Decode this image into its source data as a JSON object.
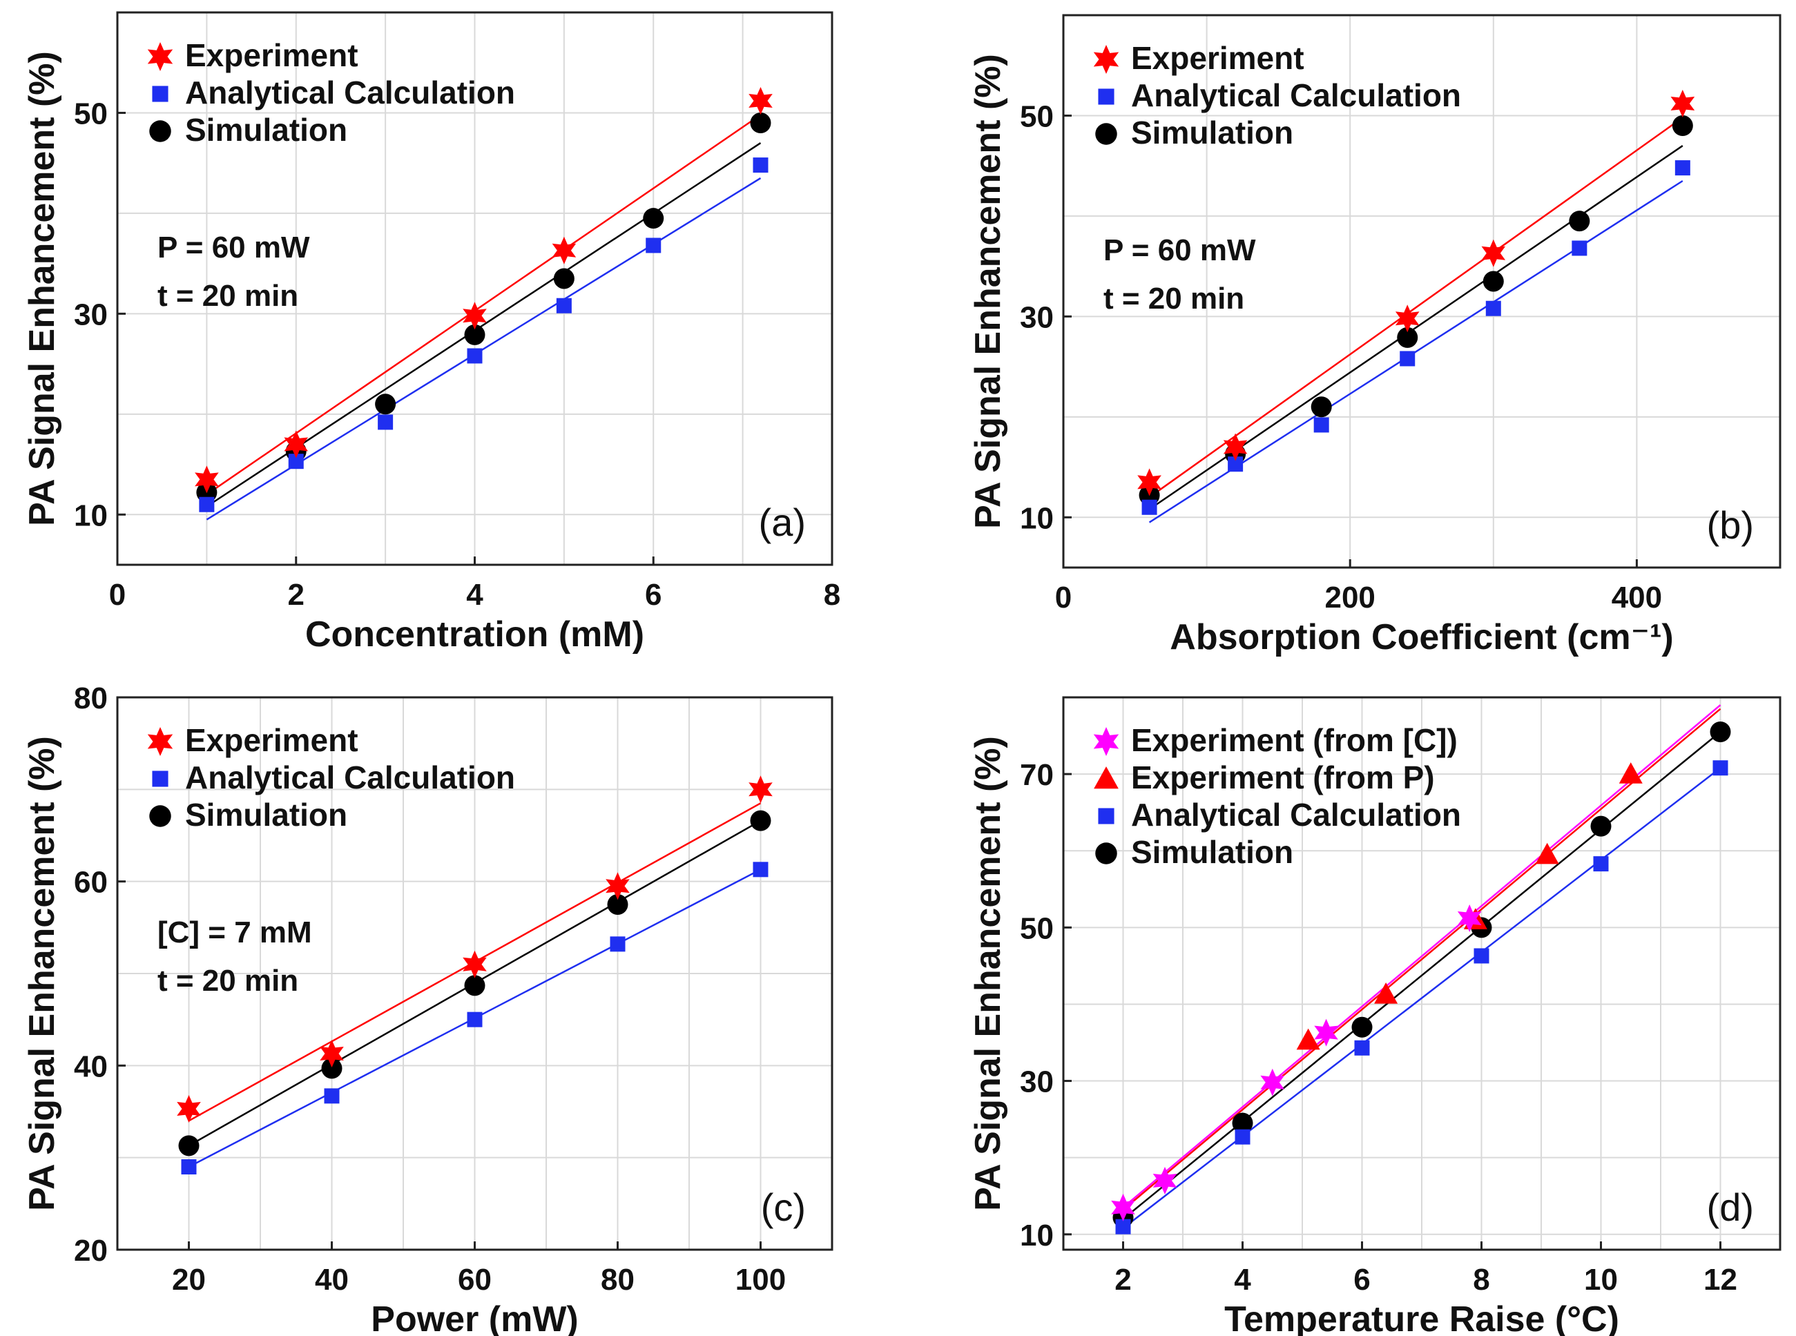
{
  "chart_data": [
    {
      "type": "scatter",
      "panel_label": "(a)",
      "xlabel": "Concentration (mM)",
      "ylabel": "PA Signal Enhancement (%)",
      "xlim": [
        0,
        8
      ],
      "ylim": [
        5,
        60
      ],
      "xticks": [
        0,
        2,
        4,
        6,
        8
      ],
      "yticks": [
        10,
        30,
        50
      ],
      "grid": true,
      "legend_position": "top-left",
      "annotations": [
        "P = 60 mW",
        "t = 20 min"
      ],
      "series": [
        {
          "name": "Experiment",
          "marker": "star",
          "color": "#ff0000",
          "x": [
            1,
            2,
            4,
            5,
            7.2
          ],
          "y": [
            13.5,
            17,
            29.8,
            36.3,
            51.2
          ],
          "fit": {
            "x": [
              1,
              7.2
            ],
            "y": [
              12,
              49.8
            ]
          }
        },
        {
          "name": "Analytical Calculation",
          "marker": "square",
          "color": "#1f2ff0",
          "x": [
            1,
            2,
            3,
            4,
            5,
            6,
            7.2
          ],
          "y": [
            11,
            15.3,
            19.2,
            25.8,
            30.8,
            36.8,
            44.8
          ],
          "fit": {
            "x": [
              1,
              7.2
            ],
            "y": [
              9.5,
              43.5
            ]
          }
        },
        {
          "name": "Simulation",
          "marker": "circle",
          "color": "#000000",
          "x": [
            1,
            2,
            3,
            4,
            5,
            6,
            7.2
          ],
          "y": [
            12.2,
            16.3,
            21,
            27.9,
            33.5,
            39.5,
            49
          ],
          "fit": {
            "x": [
              1,
              7.2
            ],
            "y": [
              10.8,
              47
            ]
          }
        }
      ]
    },
    {
      "type": "scatter",
      "panel_label": "(b)",
      "xlabel": "Absorption Coefficient (cm⁻¹)",
      "ylabel": "PA Signal Enhancement (%)",
      "xlim": [
        0,
        500
      ],
      "ylim": [
        5,
        60
      ],
      "xticks": [
        0,
        200,
        400
      ],
      "yticks": [
        10,
        30,
        50
      ],
      "grid": true,
      "legend_position": "top-left",
      "annotations": [
        "P = 60 mW",
        "t = 20 min"
      ],
      "series": [
        {
          "name": "Experiment",
          "marker": "star",
          "color": "#ff0000",
          "x": [
            60,
            120,
            240,
            300,
            432
          ],
          "y": [
            13.5,
            17,
            29.8,
            36.3,
            51.2
          ],
          "fit": {
            "x": [
              60,
              432
            ],
            "y": [
              12,
              49.8
            ]
          }
        },
        {
          "name": "Analytical Calculation",
          "marker": "square",
          "color": "#1f2ff0",
          "x": [
            60,
            120,
            180,
            240,
            300,
            360,
            432
          ],
          "y": [
            11,
            15.3,
            19.2,
            25.8,
            30.8,
            36.8,
            44.8
          ],
          "fit": {
            "x": [
              60,
              432
            ],
            "y": [
              9.5,
              43.5
            ]
          }
        },
        {
          "name": "Simulation",
          "marker": "circle",
          "color": "#000000",
          "x": [
            60,
            120,
            180,
            240,
            300,
            360,
            432
          ],
          "y": [
            12.2,
            16.3,
            21,
            27.9,
            33.5,
            39.5,
            49
          ],
          "fit": {
            "x": [
              60,
              432
            ],
            "y": [
              10.8,
              47
            ]
          }
        }
      ]
    },
    {
      "type": "scatter",
      "panel_label": "(c)",
      "xlabel": "Power (mW)",
      "ylabel": "PA Signal Enhancement (%)",
      "xlim": [
        10,
        110
      ],
      "ylim": [
        20,
        80
      ],
      "xticks": [
        20,
        40,
        60,
        80,
        100
      ],
      "yticks": [
        20,
        40,
        60,
        80
      ],
      "grid": true,
      "legend_position": "top-left",
      "annotations": [
        "[C] = 7 mM",
        "t = 20 min"
      ],
      "series": [
        {
          "name": "Experiment",
          "marker": "star",
          "color": "#ff0000",
          "x": [
            20,
            40,
            60,
            80,
            100
          ],
          "y": [
            35.3,
            41.3,
            51,
            59.5,
            70
          ],
          "fit": {
            "x": [
              20,
              100
            ],
            "y": [
              34,
              68.5
            ]
          }
        },
        {
          "name": "Analytical Calculation",
          "marker": "square",
          "color": "#1f2ff0",
          "x": [
            20,
            40,
            60,
            80,
            100
          ],
          "y": [
            29,
            36.7,
            45,
            53.2,
            61.3
          ],
          "fit": {
            "x": [
              20,
              100
            ],
            "y": [
              29,
              61.3
            ]
          }
        },
        {
          "name": "Simulation",
          "marker": "circle",
          "color": "#000000",
          "x": [
            20,
            40,
            60,
            80,
            100
          ],
          "y": [
            31.3,
            39.7,
            48.7,
            57.5,
            66.6
          ],
          "fit": {
            "x": [
              20,
              100
            ],
            "y": [
              31.3,
              66.6
            ]
          }
        }
      ]
    },
    {
      "type": "scatter",
      "panel_label": "(d)",
      "xlabel": "Temperature Raise (°C)",
      "ylabel": "PA Signal Enhancement (%)",
      "xlim": [
        1,
        13
      ],
      "ylim": [
        8,
        80
      ],
      "xticks": [
        2,
        4,
        6,
        8,
        10,
        12
      ],
      "yticks": [
        10,
        30,
        50,
        70
      ],
      "grid": true,
      "legend_position": "top-left",
      "annotations": [],
      "series": [
        {
          "name": "Experiment (from [C])",
          "marker": "star",
          "color": "#ff00ff",
          "x": [
            2,
            2.7,
            4.5,
            5.4,
            7.8
          ],
          "y": [
            13.5,
            17,
            29.8,
            36.3,
            51.2
          ],
          "fit": {
            "x": [
              2,
              12
            ],
            "y": [
              13.5,
              79
            ]
          }
        },
        {
          "name": "Experiment (from P)",
          "marker": "triangle",
          "color": "#ff0000",
          "x": [
            5.1,
            6.4,
            7.9,
            9.1,
            10.5
          ],
          "y": [
            35.3,
            41.3,
            51,
            59.5,
            70
          ],
          "fit": {
            "x": [
              2,
              12
            ],
            "y": [
              13.2,
              78.5
            ]
          }
        },
        {
          "name": "Analytical Calculation",
          "marker": "square",
          "color": "#1f2ff0",
          "x": [
            2,
            4,
            6,
            8,
            10,
            12
          ],
          "y": [
            11,
            22.7,
            34.3,
            46.3,
            58.3,
            70.8
          ],
          "fit": {
            "x": [
              2,
              12
            ],
            "y": [
              10.8,
              70.8
            ]
          }
        },
        {
          "name": "Simulation",
          "marker": "circle",
          "color": "#000000",
          "x": [
            2,
            4,
            6,
            8,
            10,
            12
          ],
          "y": [
            12.2,
            24.5,
            37,
            50,
            63.2,
            75.5
          ],
          "fit": {
            "x": [
              2,
              12
            ],
            "y": [
              12,
              75.5
            ]
          }
        }
      ]
    }
  ]
}
